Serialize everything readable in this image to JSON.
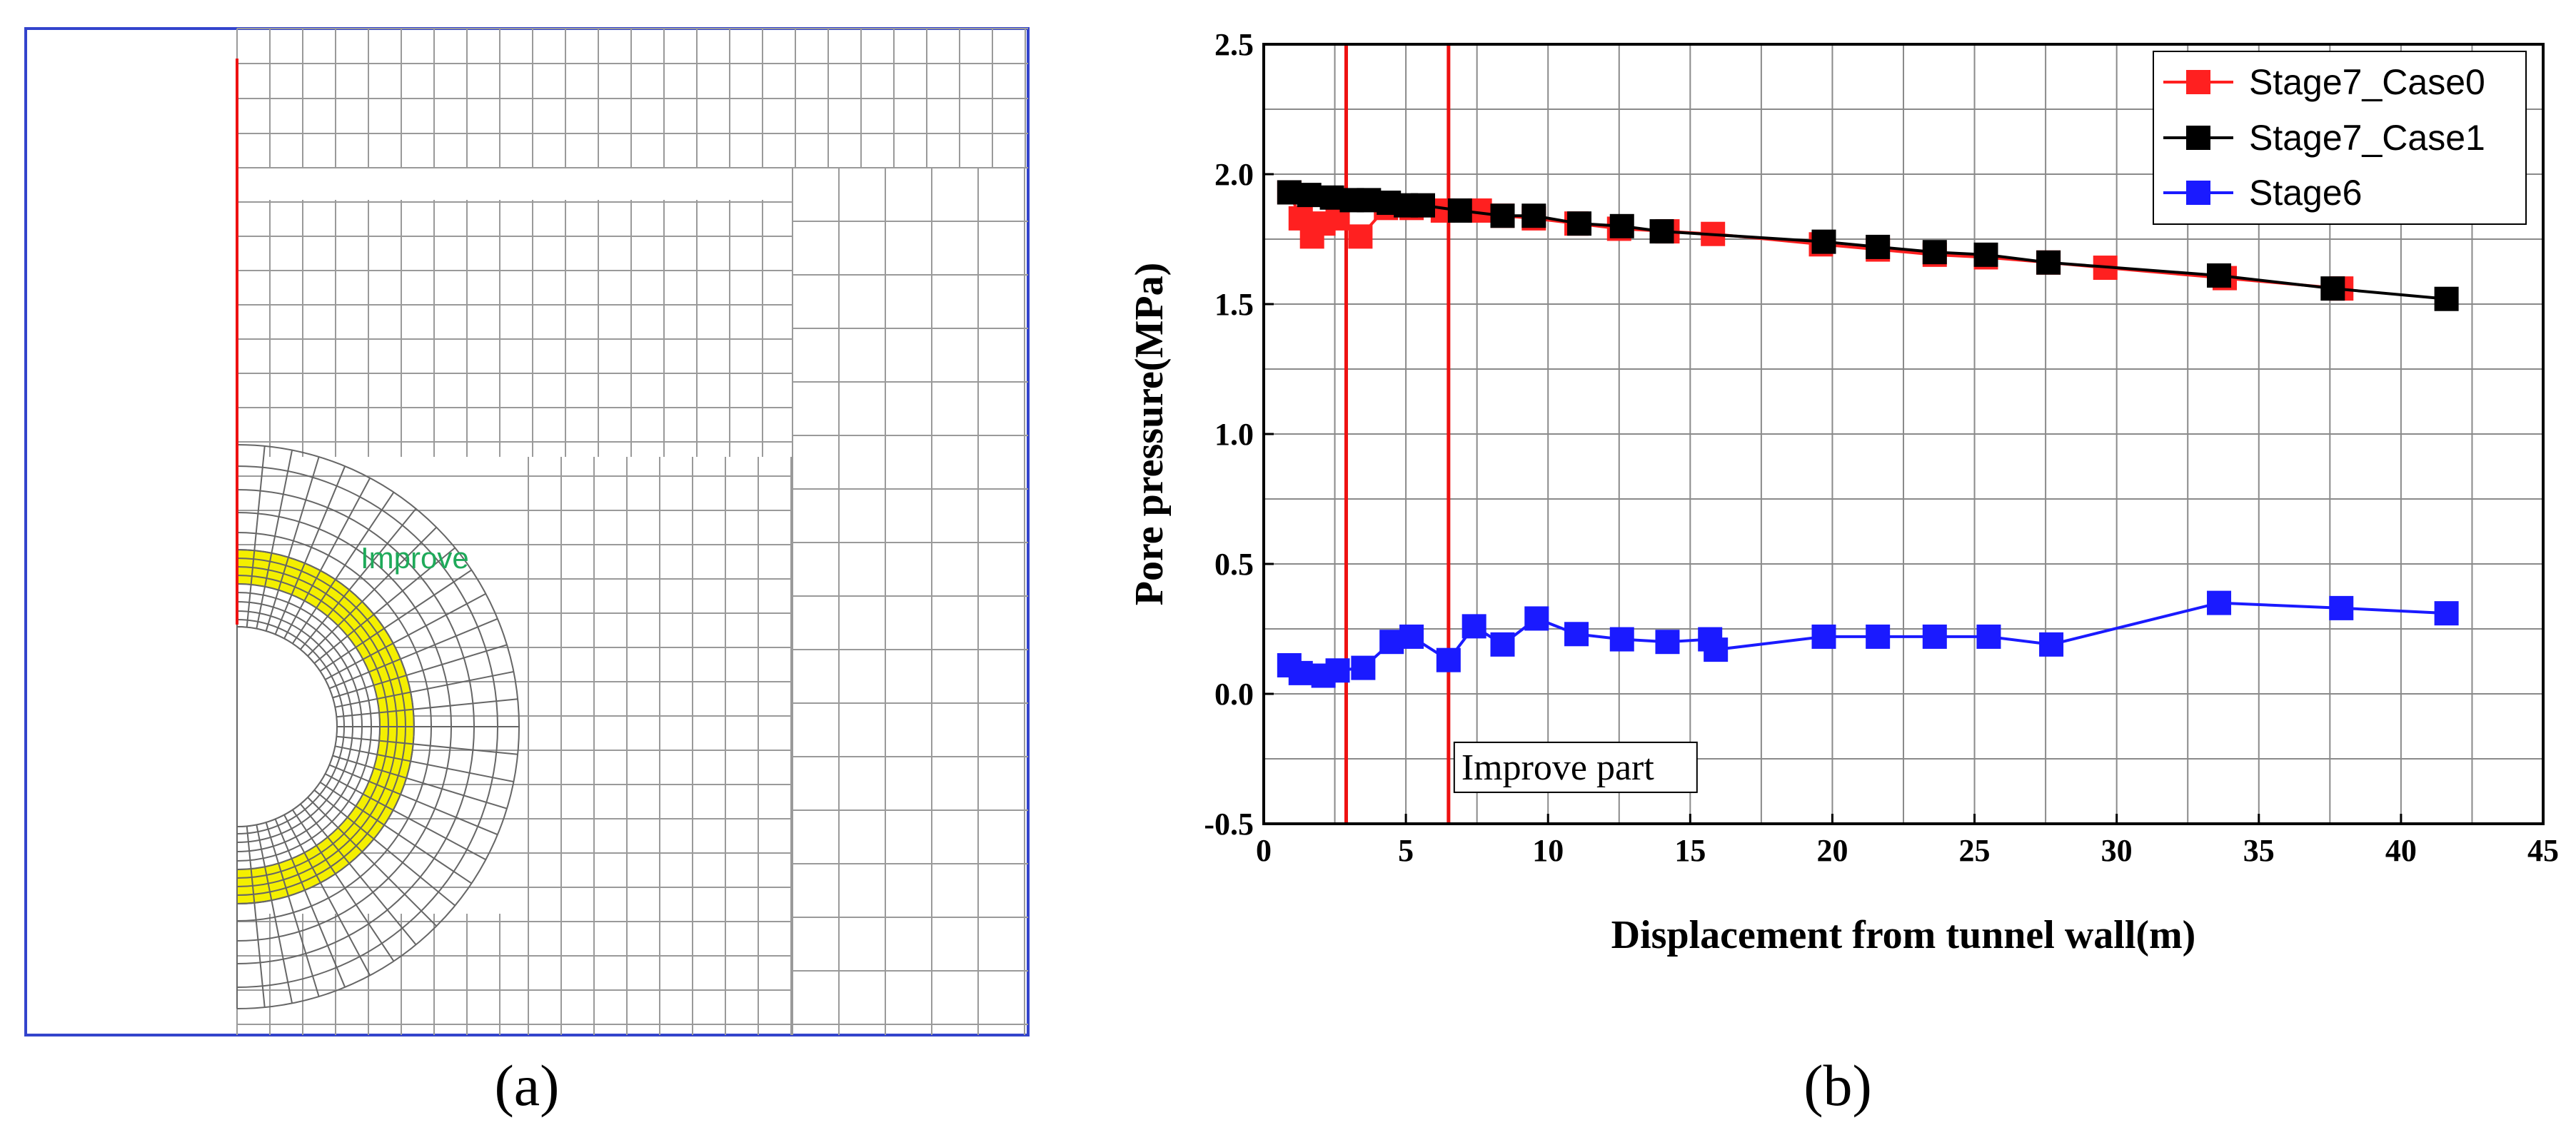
{
  "panel_a": {
    "caption": "(a)",
    "region_label": "Improve",
    "colors": {
      "boundary": "#3344cc",
      "mesh": "#9a9a9a",
      "improved_zone": "#f4ef00",
      "wall": "#ee1111",
      "label": "#1faa5a"
    }
  },
  "panel_b": {
    "caption": "(b)"
  },
  "chart_data": {
    "type": "line",
    "title": "",
    "xlabel": "Displacement from tunnel wall(m)",
    "ylabel": "Pore pressure(MPa)",
    "xlim": [
      0,
      45
    ],
    "ylim": [
      -0.5,
      2.5
    ],
    "xticks": [
      0,
      5,
      10,
      15,
      20,
      25,
      30,
      35,
      40,
      45
    ],
    "xtick_labels": [
      "0",
      "5",
      "10",
      "15",
      "20",
      "25",
      "30",
      "35",
      "40",
      "45"
    ],
    "yticks": [
      -0.5,
      0.0,
      0.5,
      1.0,
      1.5,
      2.0,
      2.5
    ],
    "ytick_labels": [
      "-0.5",
      "0.0",
      "0.5",
      "1.0",
      "1.5",
      "2.0",
      "2.5"
    ],
    "grid": true,
    "legend_position": "top-right",
    "series": [
      {
        "name": "Stage7_Case0",
        "color": "#ff2020",
        "x": [
          0.9,
          1.3,
          1.7,
          2.1,
          2.6,
          3.4,
          4.3,
          5.2,
          6.3,
          7.6,
          8.4,
          9.5,
          11.0,
          12.5,
          14.2,
          15.8,
          19.6,
          21.6,
          23.6,
          25.4,
          27.6,
          29.6,
          33.8,
          37.9
        ],
        "y": [
          1.93,
          1.83,
          1.76,
          1.81,
          1.83,
          1.76,
          1.87,
          1.87,
          1.86,
          1.86,
          1.84,
          1.83,
          1.81,
          1.79,
          1.78,
          1.77,
          1.73,
          1.71,
          1.69,
          1.68,
          1.66,
          1.64,
          1.6,
          1.56
        ]
      },
      {
        "name": "Stage7_Case1",
        "color": "#000000",
        "x": [
          0.9,
          1.6,
          2.4,
          3.1,
          3.7,
          4.4,
          5.0,
          5.6,
          6.9,
          8.4,
          9.5,
          11.1,
          12.6,
          14.0,
          19.7,
          21.6,
          23.6,
          25.4,
          27.6,
          33.6,
          37.6,
          41.6
        ],
        "y": [
          1.93,
          1.92,
          1.91,
          1.9,
          1.9,
          1.89,
          1.88,
          1.88,
          1.86,
          1.84,
          1.84,
          1.81,
          1.8,
          1.78,
          1.74,
          1.72,
          1.7,
          1.69,
          1.66,
          1.61,
          1.56,
          1.52
        ]
      },
      {
        "name": "Stage6",
        "color": "#1a1aff",
        "x": [
          0.9,
          1.3,
          2.1,
          2.6,
          3.5,
          4.5,
          5.2,
          6.5,
          7.4,
          8.4,
          9.6,
          11.0,
          12.6,
          14.2,
          15.7,
          15.9,
          19.7,
          21.6,
          23.6,
          25.5,
          27.7,
          33.6,
          37.9,
          41.6
        ],
        "y": [
          0.11,
          0.08,
          0.07,
          0.09,
          0.1,
          0.2,
          0.22,
          0.13,
          0.26,
          0.19,
          0.29,
          0.23,
          0.21,
          0.2,
          0.21,
          0.17,
          0.22,
          0.22,
          0.22,
          0.22,
          0.19,
          0.35,
          0.33,
          0.31
        ]
      }
    ],
    "vertical_lines": [
      {
        "x": 2.9,
        "color": "#ee1111"
      },
      {
        "x": 6.5,
        "color": "#ee1111"
      }
    ],
    "annotation": {
      "text": "Improve part",
      "x": 6.6,
      "y": -0.28
    }
  }
}
